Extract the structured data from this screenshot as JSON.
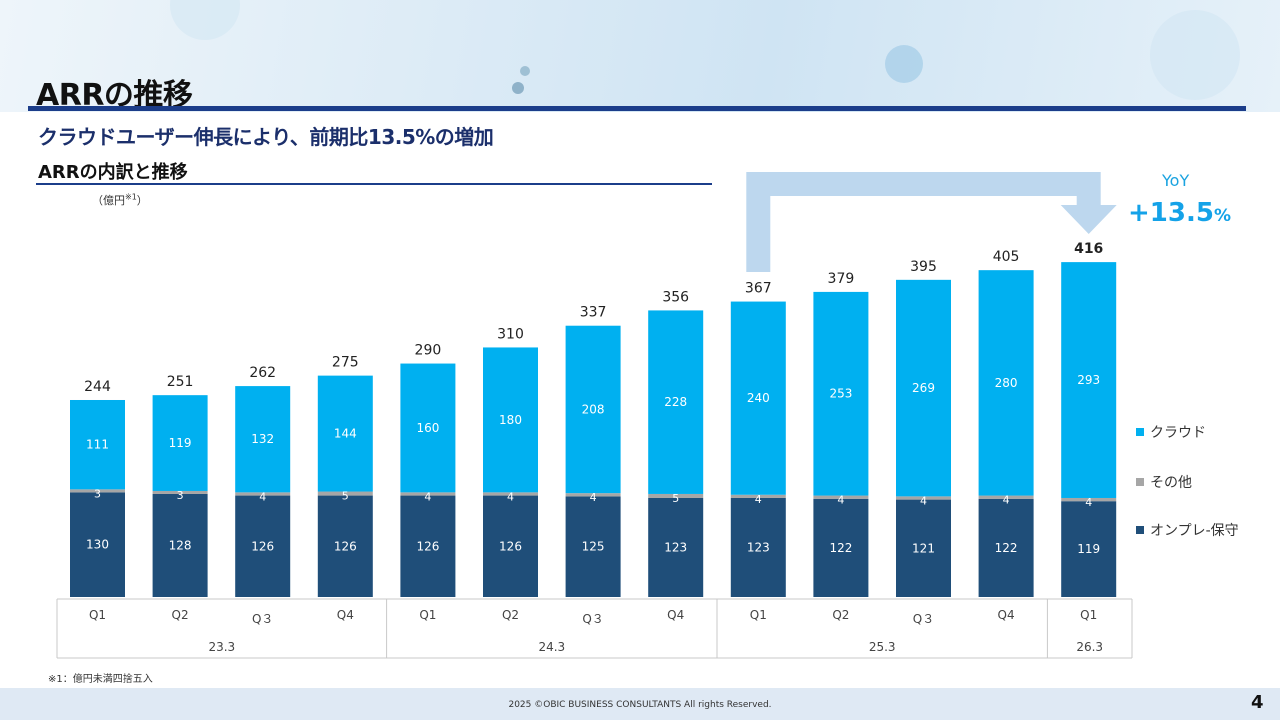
{
  "title": "ARRの推移",
  "subtitle": "クラウドユーザー伸長により、前期比13.5%の増加",
  "section_title": "ARRの内訳と推移",
  "unit": "（億円",
  "unit_note_mark": "※1",
  "unit_close": "）",
  "yoy": {
    "label": "YoY",
    "value": "+13.5",
    "pct": "%"
  },
  "legend": [
    {
      "label": "クラウド",
      "color": "#00b0f0"
    },
    {
      "label": "その他",
      "color": "#a6a6a6"
    },
    {
      "label": "オンプレ-保守",
      "color": "#1f4e79"
    }
  ],
  "footnote": "※1：億円未満四捨五入",
  "copyright": "2025  ©OBIC BUSINESS CONSULTANTS All rights Reserved.",
  "page_number": "4",
  "colors": {
    "cloud": "#00b0f0",
    "other": "#a6a6a6",
    "onprem": "#1f4e79",
    "accent": "#1b3d8a",
    "arrow": "#bdd7ee"
  },
  "chart_data": {
    "type": "bar",
    "stacked": true,
    "categories": [
      "Q1",
      "Q2",
      "Q３",
      "Q4",
      "Q1",
      "Q2",
      "Q３",
      "Q4",
      "Q1",
      "Q2",
      "Q３",
      "Q4",
      "Q1"
    ],
    "groups": [
      {
        "label": "23.3",
        "count": 4
      },
      {
        "label": "24.3",
        "count": 4
      },
      {
        "label": "25.3",
        "count": 4
      },
      {
        "label": "26.3",
        "count": 1
      }
    ],
    "series": [
      {
        "name": "オンプレ-保守",
        "values": [
          130,
          128,
          126,
          126,
          126,
          126,
          125,
          123,
          123,
          122,
          121,
          122,
          119
        ]
      },
      {
        "name": "その他",
        "values": [
          3,
          3,
          4,
          5,
          4,
          4,
          4,
          5,
          4,
          4,
          4,
          4,
          4
        ]
      },
      {
        "name": "クラウド",
        "values": [
          111,
          119,
          132,
          144,
          160,
          180,
          208,
          228,
          240,
          253,
          269,
          280,
          293
        ]
      }
    ],
    "totals": [
      244,
      251,
      262,
      275,
      290,
      310,
      337,
      356,
      367,
      379,
      395,
      405,
      416
    ],
    "ylim": [
      0,
      470
    ],
    "xlabel": "",
    "ylabel": ""
  }
}
